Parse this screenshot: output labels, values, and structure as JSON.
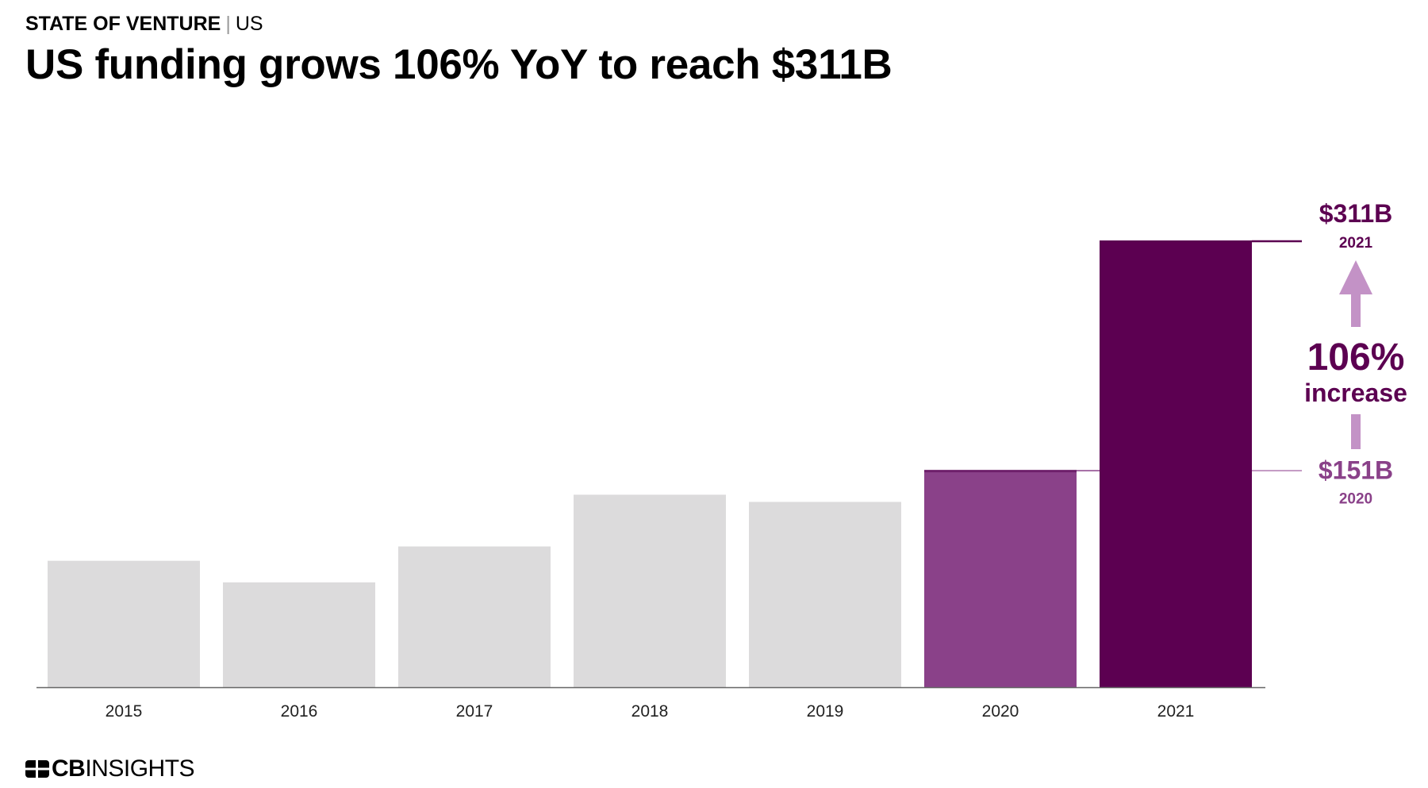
{
  "header": {
    "kicker": "STATE OF VENTURE",
    "separator": "|",
    "region": "US",
    "title": "US funding grows 106% YoY to reach $311B"
  },
  "chart_data": {
    "type": "bar",
    "categories": [
      "2015",
      "2016",
      "2017",
      "2018",
      "2019",
      "2020",
      "2021"
    ],
    "values": [
      88,
      73,
      98,
      134,
      129,
      151,
      311
    ],
    "unit": "$B",
    "ylim": [
      0,
      311
    ],
    "grid": false,
    "highlight": [
      {
        "category": "2020",
        "label": "$151B",
        "sublabel": "2020"
      },
      {
        "category": "2021",
        "label": "$311B",
        "sublabel": "2021"
      }
    ],
    "annotation": {
      "value": "106%",
      "text": "increase"
    },
    "colors": {
      "default": "#dcdbdc",
      "2020": "#8a4189",
      "2021": "#5c0051",
      "arrow": "#c392c6",
      "axis": "#666666"
    }
  },
  "footer": {
    "brand_strong": "CB",
    "brand_light": "INSIGHTS"
  }
}
